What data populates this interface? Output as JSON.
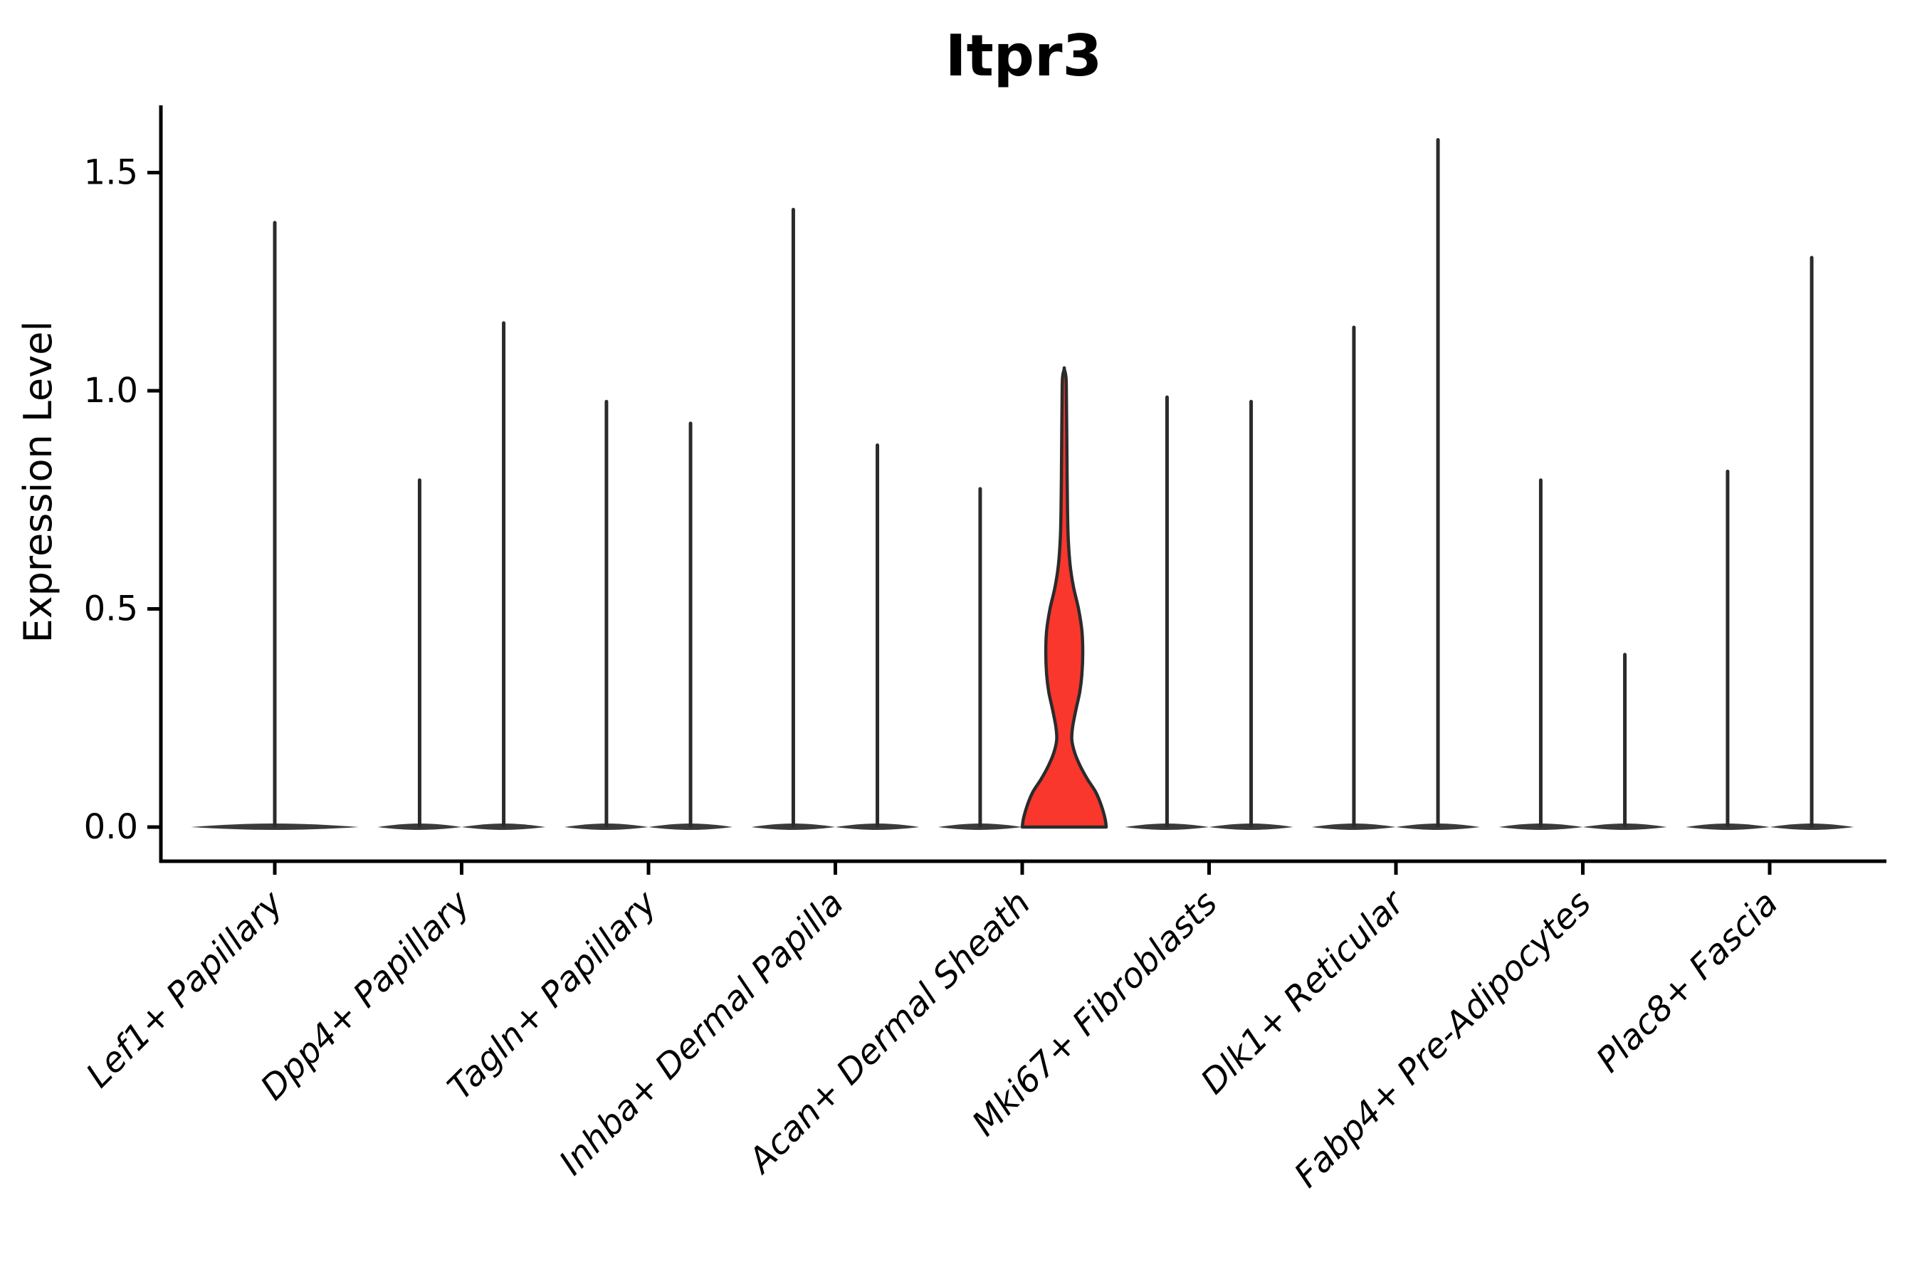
{
  "title": "Itpr3",
  "colors": {
    "background": "#ffffff",
    "axis": "#000000",
    "text": "#000000",
    "violin_stroke": "#2b2b2b",
    "pancake_fill": "#3a3a3a",
    "highlight_fill": "#f9372d"
  },
  "chart_data": {
    "type": "violin",
    "title": "Itpr3",
    "xlabel": "",
    "ylabel": "Expression Level",
    "ylim": [
      0,
      1.65
    ],
    "yticks": [
      "0.0",
      "0.5",
      "1.0",
      "1.5"
    ],
    "grid": false,
    "legend": false,
    "categories": [
      "Lef1+ Papillary",
      "Dpp4+ Papillary",
      "Tagln+ Papillary",
      "Inhba+ Dermal Papilla",
      "Acan+ Dermal Sheath",
      "Mki67+ Fibroblasts",
      "Dlk1+ Reticular",
      "Fabp4+ Pre-Adipocytes",
      "Plac8+ Fascia"
    ],
    "violin_groups": [
      {
        "category": "Lef1+ Papillary",
        "violins": [
          {
            "position": "center",
            "max_expression": 1.39,
            "filled": false
          }
        ]
      },
      {
        "category": "Dpp4+ Papillary",
        "violins": [
          {
            "position": "left",
            "max_expression": 0.8,
            "filled": false
          },
          {
            "position": "right",
            "max_expression": 1.16,
            "filled": false
          }
        ]
      },
      {
        "category": "Tagln+ Papillary",
        "violins": [
          {
            "position": "left",
            "max_expression": 0.98,
            "filled": false
          },
          {
            "position": "right",
            "max_expression": 0.93,
            "filled": false
          }
        ]
      },
      {
        "category": "Inhba+ Dermal Papilla",
        "violins": [
          {
            "position": "left",
            "max_expression": 1.42,
            "filled": false
          },
          {
            "position": "right",
            "max_expression": 0.88,
            "filled": false
          }
        ]
      },
      {
        "category": "Acan+ Dermal Sheath",
        "violins": [
          {
            "position": "left",
            "max_expression": 0.78,
            "filled": false
          },
          {
            "position": "right",
            "max_expression": 1.05,
            "filled": true,
            "fill_color": "#f9372d"
          }
        ]
      },
      {
        "category": "Mki67+ Fibroblasts",
        "violins": [
          {
            "position": "left",
            "max_expression": 0.99,
            "filled": false
          },
          {
            "position": "right",
            "max_expression": 0.98,
            "filled": false
          }
        ]
      },
      {
        "category": "Dlk1+ Reticular",
        "violins": [
          {
            "position": "left",
            "max_expression": 1.15,
            "filled": false
          },
          {
            "position": "right",
            "max_expression": 1.58,
            "filled": false
          }
        ]
      },
      {
        "category": "Fabp4+ Pre-Adipocytes",
        "violins": [
          {
            "position": "left",
            "max_expression": 0.8,
            "filled": false
          },
          {
            "position": "right",
            "max_expression": 0.4,
            "filled": false
          }
        ]
      },
      {
        "category": "Plac8+ Fascia",
        "violins": [
          {
            "position": "left",
            "max_expression": 0.82,
            "filled": false
          },
          {
            "position": "right",
            "max_expression": 1.31,
            "filled": false
          }
        ]
      }
    ],
    "highlight_violin_profile_expression_vs_relwidth": [
      [
        0.0,
        1.0
      ],
      [
        0.02,
        0.97
      ],
      [
        0.05,
        0.88
      ],
      [
        0.08,
        0.75
      ],
      [
        0.11,
        0.55
      ],
      [
        0.14,
        0.38
      ],
      [
        0.17,
        0.25
      ],
      [
        0.2,
        0.18
      ],
      [
        0.23,
        0.2
      ],
      [
        0.27,
        0.28
      ],
      [
        0.31,
        0.37
      ],
      [
        0.35,
        0.42
      ],
      [
        0.4,
        0.44
      ],
      [
        0.45,
        0.42
      ],
      [
        0.5,
        0.34
      ],
      [
        0.55,
        0.22
      ],
      [
        0.6,
        0.14
      ],
      [
        0.66,
        0.095
      ],
      [
        0.72,
        0.078
      ],
      [
        0.8,
        0.068
      ],
      [
        0.9,
        0.06
      ],
      [
        0.98,
        0.052
      ],
      [
        1.03,
        0.042
      ],
      [
        1.05,
        0.0
      ]
    ]
  }
}
